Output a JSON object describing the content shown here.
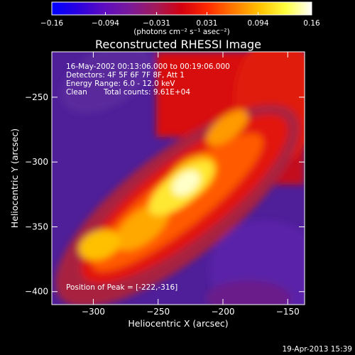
{
  "chart_data": {
    "type": "heatmap",
    "title": "Reconstructed RHESSI Image",
    "xlabel": "Heliocentric X (arcsec)",
    "ylabel": "Heliocentric Y (arcsec)",
    "xlim": [
      -332,
      -137
    ],
    "ylim": [
      -410,
      -215
    ],
    "x_ticks": [
      -300,
      -250,
      -200,
      -150
    ],
    "y_ticks": [
      -250,
      -300,
      -350,
      -400
    ],
    "x_tick_labels": [
      "−300",
      "−250",
      "−200",
      "−150"
    ],
    "y_tick_labels": [
      "−250",
      "−300",
      "−350",
      "−400"
    ],
    "colorbar": {
      "range": [
        -0.16,
        0.16
      ],
      "ticks": [
        -0.16,
        -0.094,
        -0.031,
        0.031,
        0.094,
        0.16
      ],
      "tick_labels": [
        "−0.16",
        "−0.094",
        "−0.031",
        "0.031",
        "0.094",
        "0.16"
      ],
      "label": "(photons cm⁻² s⁻¹ asec⁻²)",
      "colormap": [
        "#0000ff",
        "#2a00e0",
        "#5d0cc0",
        "#7a1a99",
        "#a31a5a",
        "#d4000f",
        "#ff2a00",
        "#ff7a00",
        "#ffc200",
        "#ffff40",
        "#ffffff"
      ]
    },
    "annotations": [
      "16-May-2002 00:13:06.000 to 00:19:06.000",
      "Detectors: 4F 5F 6F 7F 8F, Att 1",
      "Energy Range: 6.0 - 12.0 keV",
      "Clean",
      "Total counts: 9.61E+04",
      "Position of Peak = [-222,-316]"
    ],
    "peak": [
      -222,
      -316
    ],
    "peak_value": 0.16
  },
  "footer": {
    "timestamp": "19-Apr-2013 15:39"
  }
}
